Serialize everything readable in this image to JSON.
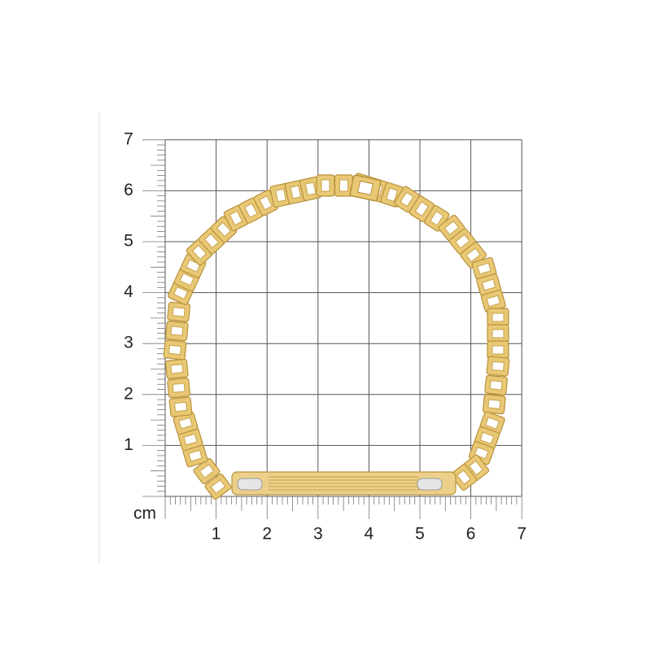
{
  "ruler": {
    "unit": "cm",
    "x_labels": [
      "1",
      "2",
      "3",
      "4",
      "5",
      "6",
      "7"
    ],
    "y_labels": [
      "1",
      "2",
      "3",
      "4",
      "5",
      "6",
      "7"
    ]
  }
}
